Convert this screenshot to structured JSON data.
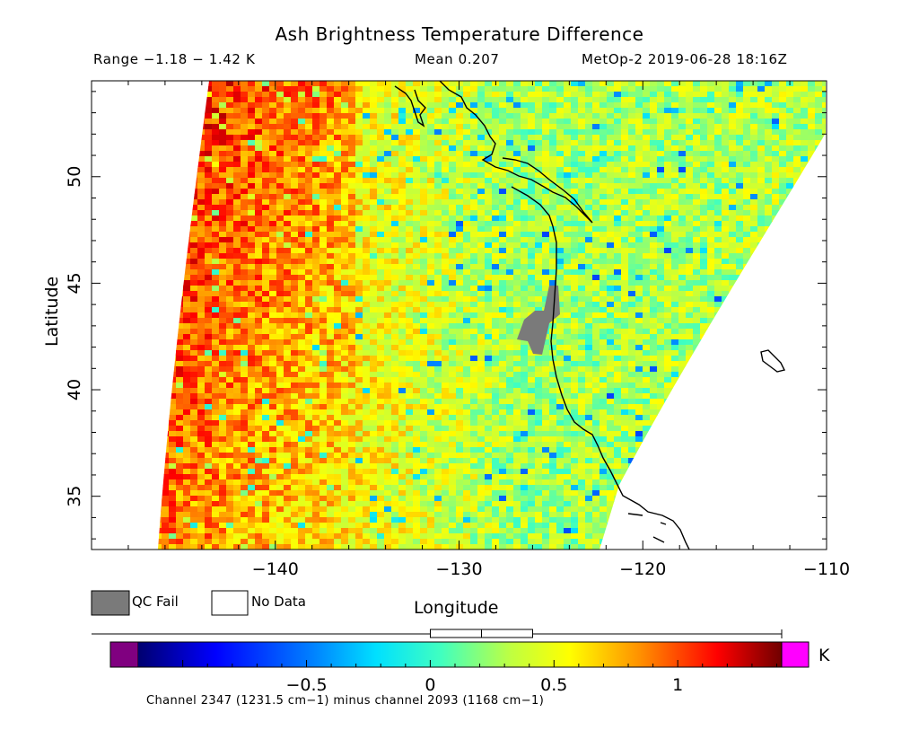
{
  "header": {
    "title": "Ash Brightness Temperature Difference",
    "range": "Range −1.18 − 1.42 K",
    "mean": "Mean 0.207",
    "satellite_time": "MetOp-2 2019-06-28 18:16Z"
  },
  "map": {
    "xlabel": "Longitude",
    "ylabel": "Latitude",
    "lon_range": [
      -150,
      -110
    ],
    "lat_range": [
      32.5,
      54.5
    ],
    "x_ticks": [
      "−140",
      "−130",
      "−120",
      "−110"
    ],
    "y_ticks": [
      "35",
      "40",
      "45",
      "50"
    ]
  },
  "legend": {
    "qc_fail": "QC Fail",
    "no_data": "No Data",
    "qc_color": "#7a7a7a"
  },
  "colorbar": {
    "min": -1.18,
    "max": 1.42,
    "ticks": [
      "−0.5",
      "0",
      "0.5",
      "1"
    ],
    "unit": "K",
    "under_color": "#800080",
    "over_color": "#ff00ff",
    "mean": 0.207
  },
  "footer": {
    "channel_note": "Channel 2347 (1231.5 cm−1) minus channel 2093 (1168 cm−1)"
  }
}
